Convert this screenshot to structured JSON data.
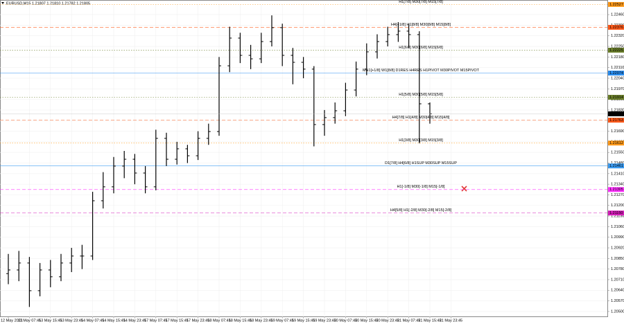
{
  "chart_data": {
    "type": "ohlc",
    "title": "EURUSD,M15  1.21807 1.21810 1.21782 1.21805",
    "categories": [
      "12 May 2021",
      null,
      "13 May 07:45",
      null,
      "13 May 15:45",
      null,
      "13 May 23:45",
      null,
      "14 May 07:45",
      null,
      "14 May 15:45",
      null,
      "14 May 23:45",
      null,
      "17 May 07:45",
      null,
      "17 May 15:45",
      null,
      "17 May 23:45",
      null,
      "18 May 07:45",
      null,
      "18 May 15:45",
      null,
      "18 May 23:45",
      null,
      "19 May 07:45",
      null,
      "19 May 15:45",
      null,
      "19 May 23:45",
      null,
      "20 May 07:45",
      null,
      "20 May 15:45",
      null,
      "20 May 23:45",
      null,
      "21 May 07:45",
      null,
      "21 May 15:45",
      null,
      "21 May 23:45"
    ],
    "open": [
      1.2075,
      1.20774,
      1.2082,
      1.20637,
      1.20774,
      1.20729,
      1.2082,
      1.20866,
      1.20866,
      1.21231,
      1.21323,
      1.2146,
      1.21505,
      1.21414,
      1.21323,
      1.21643,
      1.21505,
      1.21574,
      1.21528,
      1.21643,
      1.21688,
      1.22122,
      1.22305,
      1.22191,
      1.22168,
      1.22282,
      1.22374,
      1.22191,
      1.22145,
      1.221,
      1.21734,
      1.2178,
      1.21825,
      1.21962,
      1.221,
      1.22214,
      1.22282,
      1.22328,
      1.22351,
      1.22328,
      1.21871,
      null,
      null
    ],
    "high": [
      1.2088,
      1.209,
      1.2086,
      1.2082,
      1.2084,
      1.2088,
      1.2092,
      1.2094,
      1.2129,
      1.2142,
      1.2152,
      1.2156,
      1.2154,
      1.2146,
      1.217,
      1.2168,
      1.2162,
      1.216,
      1.2169,
      1.2174,
      1.2218,
      1.2238,
      1.2234,
      1.2226,
      1.2234,
      1.22455,
      1.224,
      1.2224,
      1.2218,
      1.2212,
      1.2183,
      1.2188,
      1.2201,
      1.2215,
      1.2227,
      1.2233,
      1.2238,
      1.2241,
      1.224,
      1.2235,
      1.2188,
      null,
      null
    ],
    "low": [
      1.2068,
      1.207,
      1.2053,
      1.206,
      1.2066,
      1.207,
      1.2076,
      1.2078,
      1.2084,
      1.2118,
      1.2128,
      1.2138,
      1.2134,
      1.2128,
      1.213,
      1.2146,
      1.2147,
      1.2148,
      1.215,
      1.216,
      1.2166,
      1.2208,
      1.2214,
      1.221,
      1.2214,
      1.2225,
      1.2212,
      1.22,
      1.2204,
      1.2159,
      1.2166,
      1.2174,
      1.2179,
      1.2192,
      1.2206,
      1.2217,
      1.2225,
      1.2228,
      1.2224,
      1.2161,
      1.2174,
      null,
      null
    ],
    "close": [
      1.20774,
      1.2082,
      1.20637,
      1.20774,
      1.20729,
      1.2082,
      1.20866,
      1.20866,
      1.21231,
      1.21323,
      1.2146,
      1.21505,
      1.21414,
      1.21323,
      1.21643,
      1.21505,
      1.21574,
      1.21528,
      1.21643,
      1.21688,
      1.22122,
      1.22305,
      1.22191,
      1.22168,
      1.22282,
      1.22374,
      1.22191,
      1.22145,
      1.221,
      1.21734,
      1.2178,
      1.21825,
      1.21962,
      1.221,
      1.22214,
      1.22282,
      1.22328,
      1.22351,
      1.22328,
      1.21871,
      1.21805,
      null,
      null
    ],
    "color": "#000000",
    "ylim": [
      1.20463,
      1.22529
    ],
    "yticks": [
      {
        "value": 1.205,
        "label": "1.20500"
      },
      {
        "value": 1.2057,
        "label": "1.20570"
      },
      {
        "value": 1.2064,
        "label": "1.20640"
      },
      {
        "value": 1.2071,
        "label": "1.20710"
      },
      {
        "value": 1.2078,
        "label": "1.20780"
      },
      {
        "value": 1.2085,
        "label": "1.20850"
      },
      {
        "value": 1.2092,
        "label": "1.20920"
      },
      {
        "value": 1.2099,
        "label": "1.20990"
      },
      {
        "value": 1.2106,
        "label": "1.21060"
      },
      {
        "value": 1.2113,
        "label": "1.21130"
      },
      {
        "value": 1.212,
        "label": "1.21200"
      },
      {
        "value": 1.2127,
        "label": "1.21270"
      },
      {
        "value": 1.2134,
        "label": "1.21340"
      },
      {
        "value": 1.2141,
        "label": "1.21410"
      },
      {
        "value": 1.2148,
        "label": "1.21480"
      },
      {
        "value": 1.2155,
        "label": "1.21550"
      },
      {
        "value": 1.2162,
        "label": "1.21620"
      },
      {
        "value": 1.2169,
        "label": "1.21690"
      },
      {
        "value": 1.2176,
        "label": "1.21760"
      },
      {
        "value": 1.2183,
        "label": "1.21830"
      },
      {
        "value": 1.219,
        "label": "1.21900"
      },
      {
        "value": 1.2197,
        "label": "1.21970"
      },
      {
        "value": 1.2204,
        "label": "1.22040"
      },
      {
        "value": 1.2211,
        "label": "1.22110"
      },
      {
        "value": 1.2218,
        "label": "1.22180"
      },
      {
        "value": 1.2225,
        "label": "1.22250"
      },
      {
        "value": 1.2232,
        "label": "1.22320"
      },
      {
        "value": 1.2239,
        "label": "1.22390"
      },
      {
        "value": 1.2246,
        "label": "1.22460"
      }
    ],
    "grid": true,
    "levels": {
      "names": [
        "H1[7/8] M30[7/8] M15[7/8]",
        "H4[+1/8] H1[8/8] M30[8/8] M15[8/8]",
        "H1[6/8] M30[6/8] M15[6/8]",
        "MN1[+1/8] W1[8/8] D1RES H4RES H1PIVOT M30PIVOT M15PIVOT",
        "H1[5/8] M30[5/8] M15[5/8]",
        "H4[7/8] H1[4/8] M30[4/8] M15[4/8]",
        "H1[3/8] M30[3/8] M15[3/8]",
        "D1[7/8] H4[6/8] H1SUP M30SUP M15SUP",
        "H1[-1/8] M30[-1/8] M15[-1/8]",
        "H4[5/8] H1[-2/8] M30[-2/8] M15[-2/8]"
      ],
      "values": [
        1.22527,
        1.22376,
        1.22225,
        1.22074,
        1.21914,
        1.21763,
        1.21612,
        1.21461,
        1.21305,
        1.2115
      ],
      "value_labels": [
        "1.22527",
        "1.22376",
        "1.22225",
        "1.22074",
        "1.21914",
        "1.21763",
        "1.21612",
        "1.21461",
        "1.21305",
        "1.21150"
      ],
      "colors": [
        "#ff9a1a",
        "#ff5a1a",
        "#6b7f2a",
        "#2b8ef0",
        "#6b7f2a",
        "#ff5a1a",
        "#ff9a1a",
        "#3a9af0",
        "#ff33ff",
        "#d41cb8"
      ],
      "styles": [
        "dotted",
        "dashed",
        "dotted",
        "solid",
        "dotted",
        "dashed",
        "dotted",
        "solid",
        "dashed",
        "dashed"
      ]
    },
    "last": 1.21805,
    "last_label": "1.21805"
  }
}
